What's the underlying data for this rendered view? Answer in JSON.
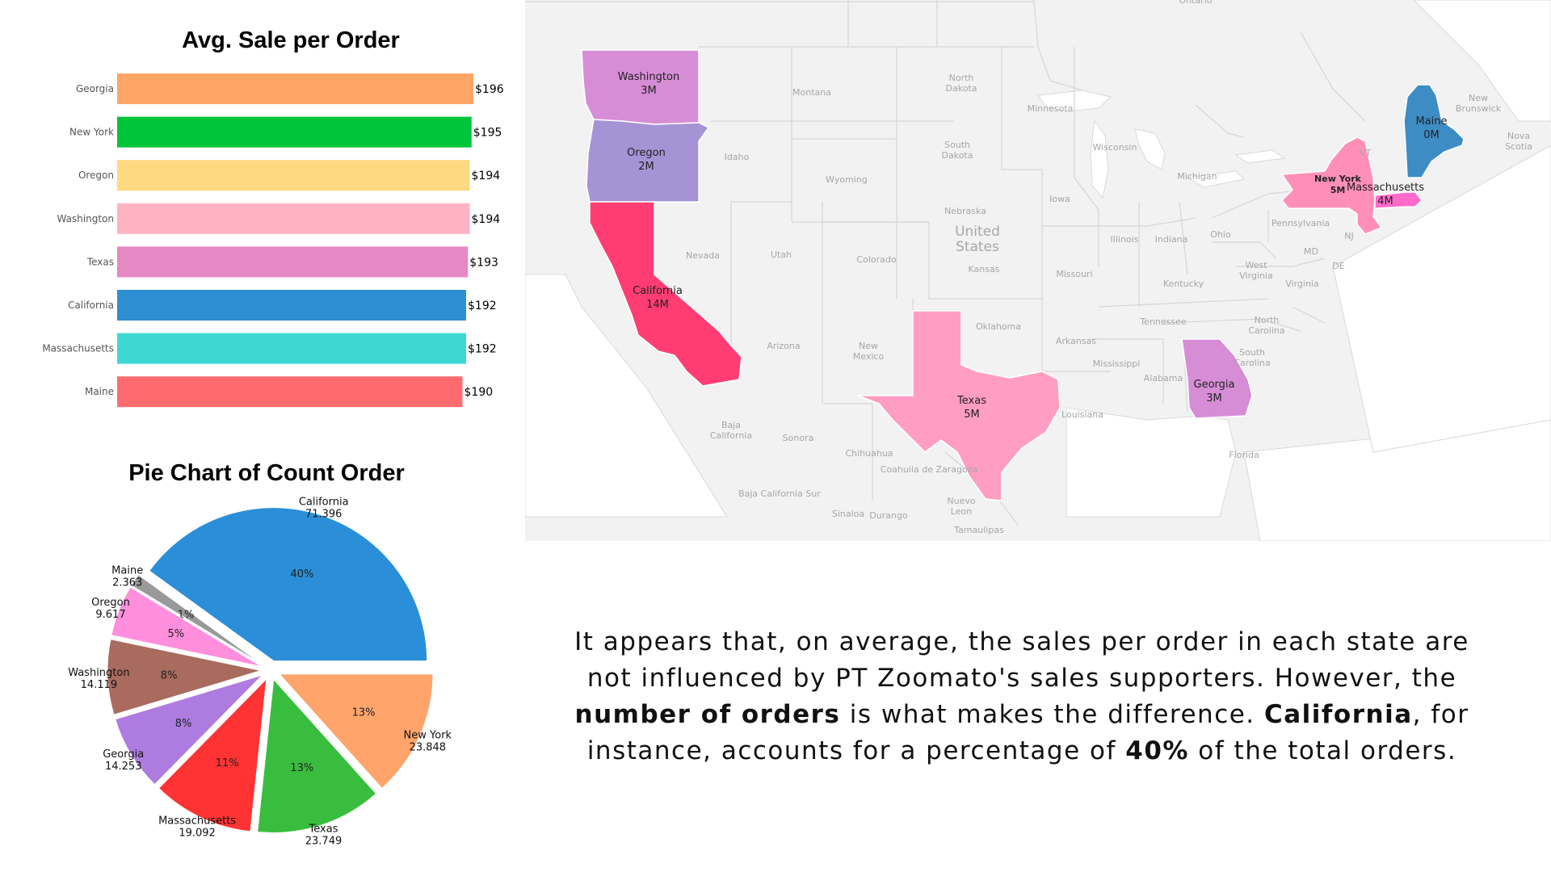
{
  "chart_data": [
    {
      "type": "bar",
      "orientation": "horizontal",
      "title": "Avg. Sale per Order",
      "categories": [
        "Georgia",
        "New York",
        "Oregon",
        "Washington",
        "Texas",
        "California",
        "Massachusetts",
        "Maine"
      ],
      "values": [
        196,
        195,
        194,
        194,
        193,
        192,
        192,
        190
      ],
      "value_labels": [
        "$196",
        "$195",
        "$194",
        "$194",
        "$193",
        "$192",
        "$192",
        "$190"
      ],
      "colors": [
        "#FFA566",
        "#00C43A",
        "#FFD97F",
        "#FFB3C2",
        "#E588C4",
        "#2E8FD3",
        "#3DD8D1",
        "#FF6B6E"
      ],
      "grid": false
    },
    {
      "type": "pie",
      "title": "Pie Chart of Count Order",
      "slices": [
        {
          "label": "California",
          "value": 71.396,
          "value_text": "71.396",
          "pct": "40%",
          "color": "#2A8FD8"
        },
        {
          "label": "Maine",
          "value": 2.363,
          "value_text": "2.363",
          "pct": "1%",
          "color": "#999999"
        },
        {
          "label": "Oregon",
          "value": 9.617,
          "value_text": "9.617",
          "pct": "5%",
          "color": "#FF8EDD"
        },
        {
          "label": "Washington",
          "value": 14.119,
          "value_text": "14.119",
          "pct": "8%",
          "color": "#A86B5E"
        },
        {
          "label": "Georgia",
          "value": 14.253,
          "value_text": "14.253",
          "pct": "8%",
          "color": "#AE7BE0"
        },
        {
          "label": "Massachusetts",
          "value": 19.092,
          "value_text": "19.092",
          "pct": "11%",
          "color": "#FF3333"
        },
        {
          "label": "Texas",
          "value": 23.749,
          "value_text": "23.749",
          "pct": "13%",
          "color": "#39BD3E"
        },
        {
          "label": "New York",
          "value": 23.848,
          "value_text": "23.848",
          "pct": "13%",
          "color": "#FFA46A"
        }
      ]
    }
  ],
  "map": {
    "highlighted": [
      {
        "name": "Washington",
        "value": "3M",
        "color": "#D68DD6"
      },
      {
        "name": "Oregon",
        "value": "2M",
        "color": "#A593D6"
      },
      {
        "name": "California",
        "value": "14M",
        "color": "#FF3D73"
      },
      {
        "name": "Texas",
        "value": "5M",
        "color": "#FF9EC2"
      },
      {
        "name": "Georgia",
        "value": "3M",
        "color": "#D68DD6"
      },
      {
        "name": "New York",
        "value": "5M",
        "color": "#FF8FB8"
      },
      {
        "name": "Massachusetts",
        "value": "4M",
        "color": "#FF6ACB"
      },
      {
        "name": "Maine",
        "value": "0M",
        "color": "#3D8CC4"
      }
    ],
    "background_labels": [
      "Ontario",
      "Montana",
      "North Dakota",
      "Minnesota",
      "New Brunswick",
      "Nova Scotia",
      "Idaho",
      "South Dakota",
      "Wisconsin",
      "Wyoming",
      "Michigan",
      "Nebraska",
      "United States",
      "Iowa",
      "Pennsylvania",
      "Illinois",
      "Indiana",
      "Ohio",
      "Nevada",
      "Utah",
      "Colorado",
      "Kansas",
      "Missouri",
      "West Virginia",
      "Virginia",
      "Kentucky",
      "MD",
      "DE",
      "NJ",
      "VT",
      "Oklahoma",
      "Tennessee",
      "North Carolina",
      "Arizona",
      "New Mexico",
      "Arkansas",
      "South Carolina",
      "Mississippi",
      "Alabama",
      "Louisiana",
      "Baja California",
      "Sonora",
      "Chihuahua",
      "Coahuila de Zaragoza",
      "Florida",
      "Baja California Sur",
      "Sinaloa",
      "Durango",
      "Nuevo Leon",
      "Tamaulipas"
    ],
    "colors": {
      "land": "#F2F2F2",
      "border": "#D4D4D4",
      "water": "#FFFFFF",
      "label": "#A6A6A6"
    }
  },
  "summary": {
    "line1": "It appears that, on average, the sales per order in each state are",
    "line2": "not influenced by PT Zoomato's sales supporters. However, the",
    "line3_bold": "number of orders",
    "line3_rest": " is what makes the difference. ",
    "line3_bold2": "California",
    "line3_end": ", for",
    "line4_start": "instance, accounts for a percentage of ",
    "line4_bold": "40%",
    "line4_end": " of the total orders."
  }
}
